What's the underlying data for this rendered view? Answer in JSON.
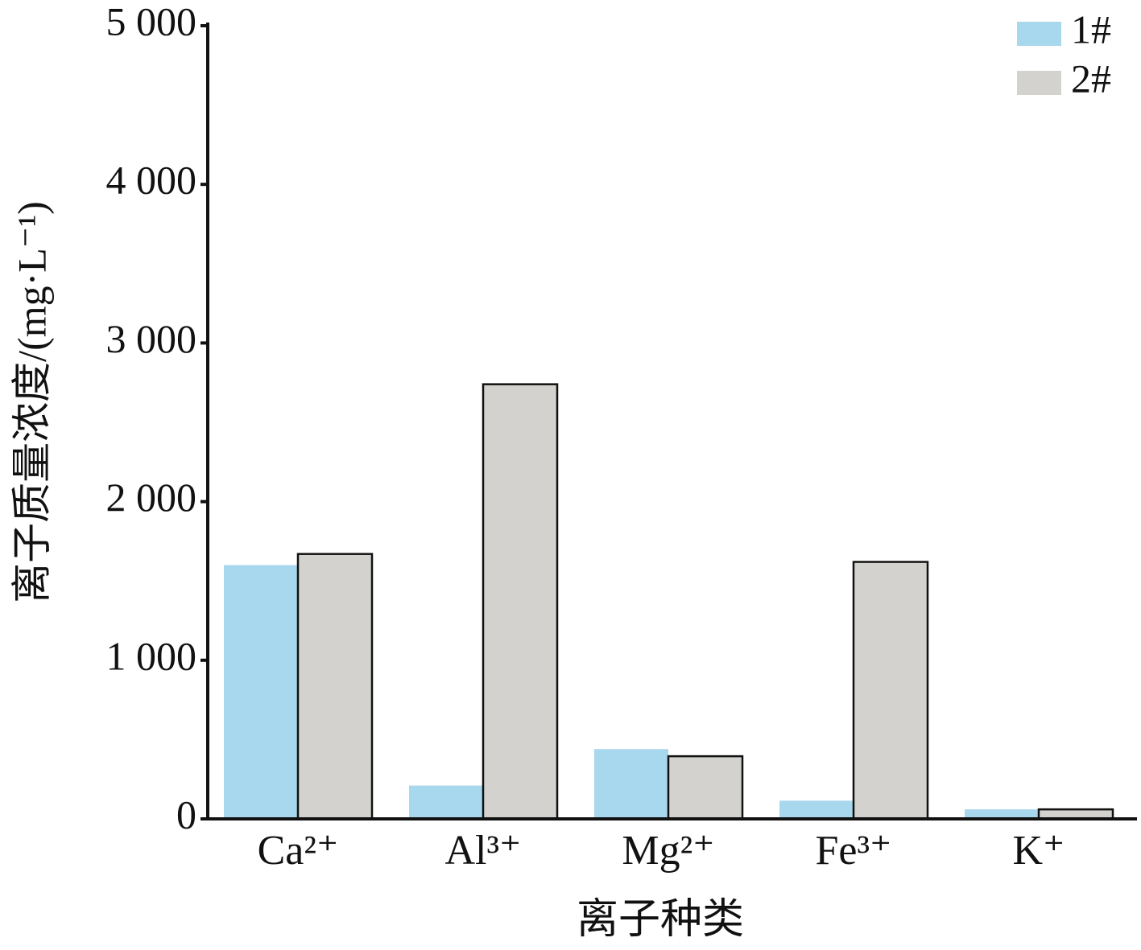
{
  "chart_data": {
    "type": "bar",
    "y_label": "离子质量浓度/(mg·L⁻¹)",
    "x_label": "离子种类",
    "categories": [
      "Ca²⁺",
      "Al³⁺",
      "Mg²⁺",
      "Fe³⁺",
      "K⁺"
    ],
    "series": [
      {
        "name": "1#",
        "color": "#a8d8ee",
        "values": [
          1600,
          210,
          440,
          115,
          60
        ]
      },
      {
        "name": "2#",
        "color": "#d3d2ce",
        "values": [
          1670,
          2740,
          395,
          1620,
          60
        ]
      }
    ],
    "ylim": [
      0,
      5000
    ],
    "yticks": [
      0,
      {
        "value": 1000,
        "label": "1 000"
      },
      {
        "value": 2000,
        "label": "2 000"
      },
      {
        "value": 3000,
        "label": "3 000"
      },
      {
        "value": 4000,
        "label": "4 000"
      },
      {
        "value": 5000,
        "label": "5 000"
      }
    ],
    "legend": "upper right",
    "grid": false
  }
}
